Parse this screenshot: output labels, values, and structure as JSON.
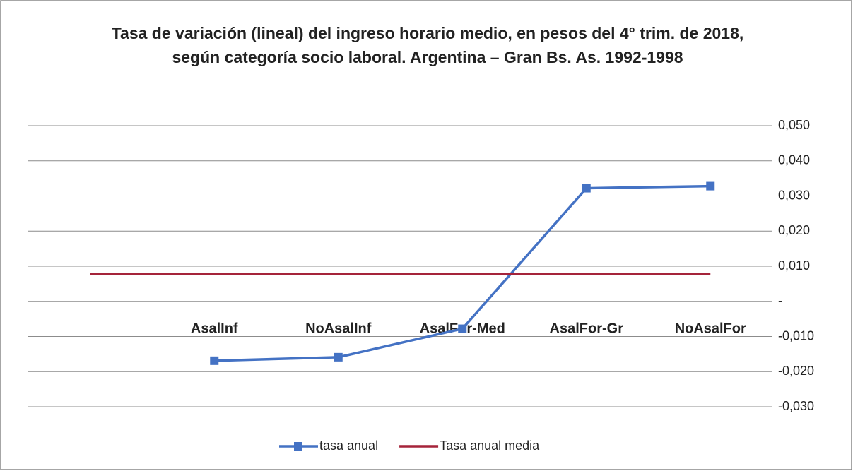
{
  "chart_data": {
    "type": "line",
    "title": "Tasa de variación (lineal) del ingreso horario medio, en pesos del 4° trim. de 2018, según categoría socio laboral. Argentina – Gran Bs. As. 1992-1998",
    "categories": [
      null,
      "AsalInf",
      "NoAsalInf",
      "AsalFor-Med",
      "AsalFor-Gr",
      "NoAsalFor"
    ],
    "series": [
      {
        "name": "tasa anual",
        "color": "#4472c4",
        "values": [
          null,
          -0.0169,
          -0.0159,
          -0.0078,
          0.0322,
          0.0328
        ]
      },
      {
        "name": "Tasa anual media",
        "color": "#a5243a",
        "values": [
          0.0078,
          0.0078,
          0.0078,
          0.0078,
          0.0078,
          0.0078
        ]
      }
    ],
    "ylim": [
      -0.03,
      0.05
    ],
    "yticks": [
      {
        "value": -0.03,
        "label": "-0,030"
      },
      {
        "value": -0.02,
        "label": "-0,020"
      },
      {
        "value": -0.01,
        "label": "-0,010"
      },
      {
        "value": 0,
        "label": "-"
      },
      {
        "value": 0.01,
        "label": "0,010"
      },
      {
        "value": 0.02,
        "label": "0,020"
      },
      {
        "value": 0.03,
        "label": "0,030"
      },
      {
        "value": 0.04,
        "label": "0,040"
      },
      {
        "value": 0.05,
        "label": "0,050"
      }
    ],
    "grid": true,
    "legend": "bottom"
  }
}
